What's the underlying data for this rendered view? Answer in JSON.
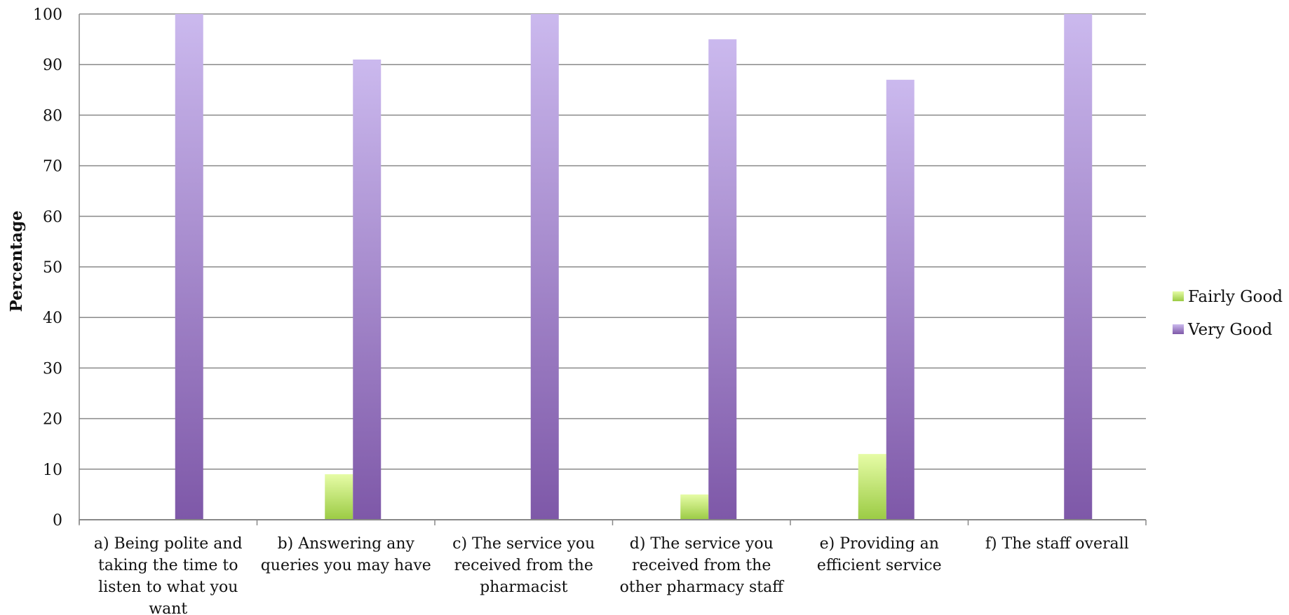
{
  "chart_data": {
    "type": "bar",
    "title": "",
    "xlabel": "",
    "ylabel": "Percentage",
    "ylim": [
      0,
      100
    ],
    "yticks": [
      0,
      10,
      20,
      30,
      40,
      50,
      60,
      70,
      80,
      90,
      100
    ],
    "grid": true,
    "legend_position": "right",
    "categories": [
      [
        "a) Being polite and",
        "taking the time to",
        "listen to what you",
        "want"
      ],
      [
        "b) Answering any",
        "queries you may have"
      ],
      [
        "c) The service you",
        "received from the",
        "pharmacist"
      ],
      [
        "d) The service you",
        "received from the",
        "other pharmacy staff"
      ],
      [
        "e) Providing an",
        "efficient service"
      ],
      [
        "f) The staff overall"
      ]
    ],
    "series": [
      {
        "name": "Fairly Good",
        "values": [
          0,
          9,
          0,
          5,
          13,
          0
        ],
        "color": "#9ACD32"
      },
      {
        "name": "Very Good",
        "values": [
          100,
          91,
          100,
          95,
          87,
          100
        ],
        "color": "#8E6BBF"
      }
    ]
  }
}
